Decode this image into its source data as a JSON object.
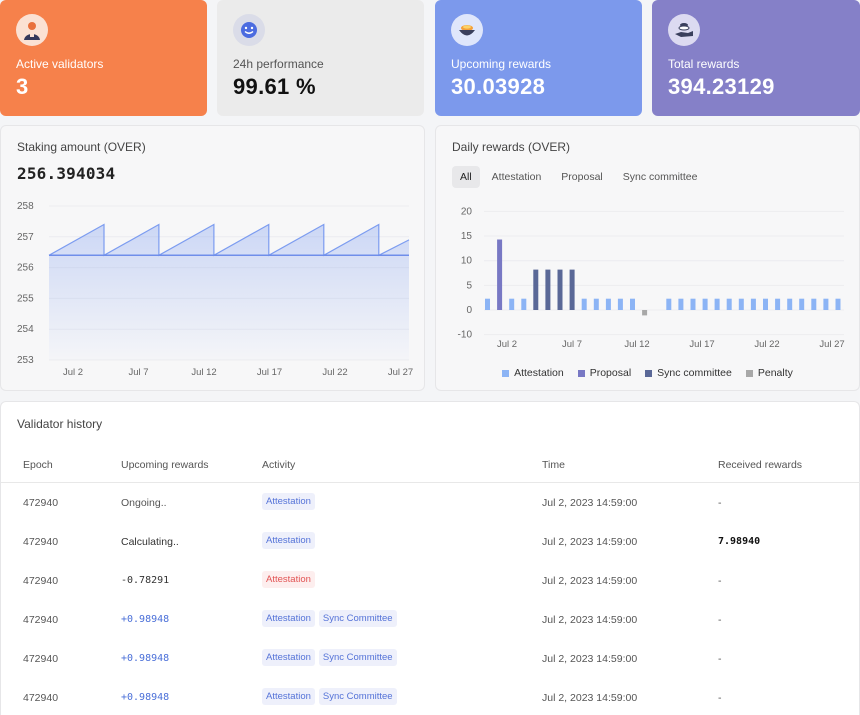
{
  "stats": {
    "active": {
      "label": "Active validators",
      "value": "3",
      "icon": "validator-avatar-icon"
    },
    "perf": {
      "label": "24h performance",
      "value": "99.61 %",
      "icon": "smiley-icon"
    },
    "upcoming": {
      "label": "Upcoming rewards",
      "value": "30.03928",
      "icon": "coin-bowl-icon"
    },
    "total": {
      "label": "Total rewards",
      "value": "394.23129",
      "icon": "coin-hand-icon"
    }
  },
  "staking": {
    "title": "Staking amount (OVER)",
    "value": "256.394034"
  },
  "daily": {
    "title": "Daily rewards (OVER)",
    "tabs": [
      "All",
      "Attestation",
      "Proposal",
      "Sync committee"
    ],
    "active_tab": "All"
  },
  "chart_data": [
    {
      "type": "area",
      "title": "Staking amount (OVER)",
      "ylim": [
        253,
        258
      ],
      "y_ticks": [
        "258",
        "257",
        "256",
        "255",
        "254",
        "253"
      ],
      "x_ticks": [
        "Jul 2",
        "Jul 7",
        "Jul 12",
        "Jul 17",
        "Jul 22",
        "Jul 27"
      ],
      "baseline": 256.4,
      "series": [
        {
          "values": [
            256.4,
            257.4,
            256.4,
            257.4,
            256.4,
            257.4,
            256.4,
            257.4,
            256.4,
            257.4,
            256.4,
            257.4,
            256.4,
            256.9
          ]
        }
      ],
      "color": "#7c9cf0"
    },
    {
      "type": "bar",
      "title": "Daily rewards (OVER)",
      "ylim": [
        -10,
        20
      ],
      "y_ticks": [
        "20",
        "15",
        "10",
        "5",
        "0",
        "-10"
      ],
      "x_ticks": [
        "Jul 2",
        "Jul 7",
        "Jul 12",
        "Jul 17",
        "Jul 22",
        "Jul 27"
      ],
      "x": [
        1,
        2,
        3,
        4,
        5,
        6,
        7,
        8,
        9,
        10,
        11,
        12,
        13,
        14,
        15,
        16,
        17,
        18,
        19,
        20,
        21,
        22,
        23,
        24,
        25,
        26,
        27,
        28,
        29,
        30
      ],
      "series": [
        {
          "name": "Attestation",
          "color": "#8cb4f5",
          "values": [
            2.3,
            0,
            2.3,
            2.3,
            0,
            0,
            0,
            0,
            2.3,
            2.3,
            2.3,
            2.3,
            2.3,
            0,
            0,
            2.3,
            2.3,
            2.3,
            2.3,
            2.3,
            2.3,
            2.3,
            2.3,
            2.3,
            2.3,
            2.3,
            2.3,
            2.3,
            2.3,
            2.3
          ]
        },
        {
          "name": "Proposal",
          "color": "#7878c4",
          "values": [
            0,
            14.3,
            0,
            0,
            0,
            0,
            0,
            0,
            0,
            0,
            0,
            0,
            0,
            0,
            0,
            0,
            0,
            0,
            0,
            0,
            0,
            0,
            0,
            0,
            0,
            0,
            0,
            0,
            0,
            0
          ]
        },
        {
          "name": "Sync committee",
          "color": "#5a6897",
          "values": [
            0,
            0,
            0,
            0,
            8.2,
            8.2,
            8.2,
            8.2,
            0,
            0,
            0,
            0,
            0,
            0,
            0,
            0,
            0,
            0,
            0,
            0,
            0,
            0,
            0,
            0,
            0,
            0,
            0,
            0,
            0,
            0
          ]
        },
        {
          "name": "Penalty",
          "color": "#a8a8a8",
          "values": [
            0,
            0,
            0,
            0,
            0,
            0,
            0,
            0,
            0,
            0,
            0,
            0,
            0,
            -2.2,
            0,
            0,
            0,
            0,
            0,
            0,
            0,
            0,
            0,
            0,
            0,
            0,
            0,
            0,
            0,
            0
          ]
        }
      ],
      "legend": "bottom"
    }
  ],
  "history": {
    "title": "Validator history",
    "columns": [
      "Epoch",
      "Upcoming rewards",
      "Activity",
      "Time",
      "Received rewards"
    ],
    "rows": [
      {
        "epoch": "472940",
        "upcoming": "Ongoing..",
        "up_style": "text",
        "activity": [
          {
            "label": "Attestation",
            "style": "blue"
          }
        ],
        "time": "Jul 2, 2023 14:59:00",
        "received": "-"
      },
      {
        "epoch": "472940",
        "upcoming": "Calculating..",
        "up_style": "text",
        "activity": [
          {
            "label": "Attestation",
            "style": "blue"
          }
        ],
        "time": "Jul 2, 2023 14:59:00",
        "received": "7.98940"
      },
      {
        "epoch": "472940",
        "upcoming": "-0.78291",
        "up_style": "neg",
        "activity": [
          {
            "label": "Attestation",
            "style": "red"
          }
        ],
        "time": "Jul 2, 2023 14:59:00",
        "received": "-"
      },
      {
        "epoch": "472940",
        "upcoming": "+0.98948",
        "up_style": "pos",
        "activity": [
          {
            "label": "Attestation",
            "style": "blue"
          },
          {
            "label": "Sync Committee",
            "style": "blue"
          }
        ],
        "time": "Jul 2, 2023 14:59:00",
        "received": "-"
      },
      {
        "epoch": "472940",
        "upcoming": "+0.98948",
        "up_style": "pos",
        "activity": [
          {
            "label": "Attestation",
            "style": "blue"
          },
          {
            "label": "Sync Committee",
            "style": "blue"
          }
        ],
        "time": "Jul 2, 2023 14:59:00",
        "received": "-"
      },
      {
        "epoch": "472940",
        "upcoming": "+0.98948",
        "up_style": "pos",
        "activity": [
          {
            "label": "Attestation",
            "style": "blue"
          },
          {
            "label": "Sync Committee",
            "style": "blue"
          }
        ],
        "time": "Jul 2, 2023 14:59:00",
        "received": "-"
      }
    ]
  }
}
